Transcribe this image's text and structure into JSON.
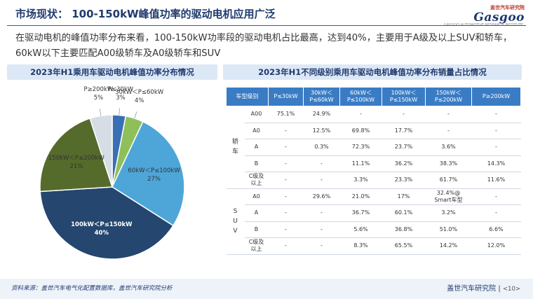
{
  "header": {
    "title": "市场现状： 100-150kW峰值功率的驱动电机应用广泛",
    "logo_top": "盖世汽车研究院",
    "logo_main": "Gasgoo",
    "logo_sub": "GASGOO AUTOMOTIVE RESEARCH INSTITUTE"
  },
  "intro": "在驱动电机的峰值功率分布来看，100-150kW功率段的驱动电机占比最高，达到40%，主要用于A级及以上SUV和轿车，60kW以下主要匹配A00级轿车及A0级轿车和SUV",
  "left_panel": {
    "title": "2023年H1乘用车驱动电机峰值功率分布情况"
  },
  "right_panel": {
    "title": "2023年H1不同级别乘用车驱动电机峰值功率分布销量占比情况"
  },
  "chart_data": {
    "type": "pie",
    "title": "2023年H1乘用车驱动电机峰值功率分布情况",
    "slices": [
      {
        "label": "P≤30kW",
        "value": 3,
        "value_label": "3%",
        "color": "#3a6fb5"
      },
      {
        "label": "30kW＜P≤60kW",
        "value": 4,
        "value_label": "4%",
        "color": "#8fbf5a"
      },
      {
        "label": "60kW＜P≤100kW",
        "value": 27,
        "value_label": "27%",
        "color": "#4ea6d8"
      },
      {
        "label": "100kW＜P≤150kW",
        "value": 40,
        "value_label": "40%",
        "color": "#24466f"
      },
      {
        "label": "150kW＜P≤200kW",
        "value": 21,
        "value_label": "21%",
        "color": "#556b2c"
      },
      {
        "label": "P≥200kW",
        "value": 5,
        "value_label": "5%",
        "color": "#d7dde4"
      }
    ]
  },
  "table": {
    "headers": [
      "车型级别",
      "",
      "P≤30kW",
      "30kW＜\nP≤60kW",
      "60kW＜\nP≤100kW",
      "100kW＜\nP≤150kW",
      "150kW＜\nP≤200kW",
      "P≥200kW"
    ],
    "groups": [
      {
        "name": "轿\n车",
        "rows": [
          {
            "level": "A00",
            "values": [
              "75.1%",
              "24.9%",
              "-",
              "-",
              "-",
              "-"
            ]
          },
          {
            "level": "A0",
            "values": [
              "-",
              "12.5%",
              "69.8%",
              "17.7%",
              "-",
              "-"
            ]
          },
          {
            "level": "A",
            "values": [
              "-",
              "0.3%",
              "72.3%",
              "23.7%",
              "3.6%",
              "-"
            ]
          },
          {
            "level": "B",
            "values": [
              "-",
              "-",
              "11.1%",
              "36.2%",
              "38.3%",
              "14.3%"
            ]
          },
          {
            "level": "C级及\n以上",
            "values": [
              "-",
              "-",
              "3.3%",
              "23.3%",
              "61.7%",
              "11.6%"
            ]
          }
        ]
      },
      {
        "name": "S\nU\nV",
        "rows": [
          {
            "level": "A0",
            "values": [
              "-",
              "29.6%",
              "21.0%",
              "17%",
              "32.4%@\nSmart车型",
              "-"
            ]
          },
          {
            "level": "A",
            "values": [
              "-",
              "-",
              "36.7%",
              "60.1%",
              "3.2%",
              "-"
            ]
          },
          {
            "level": "B",
            "values": [
              "-",
              "-",
              "5.6%",
              "36.8%",
              "51.0%",
              "6.6%"
            ]
          },
          {
            "level": "C级及\n以上",
            "values": [
              "-",
              "-",
              "8.3%",
              "65.5%",
              "14.2%",
              "12.0%"
            ]
          }
        ]
      }
    ]
  },
  "footer": {
    "source": "资料来源：盖世汽车电气化配置数据库，盖世汽车研究院分析",
    "org": "盖世汽车研究院",
    "page": "<10>"
  }
}
